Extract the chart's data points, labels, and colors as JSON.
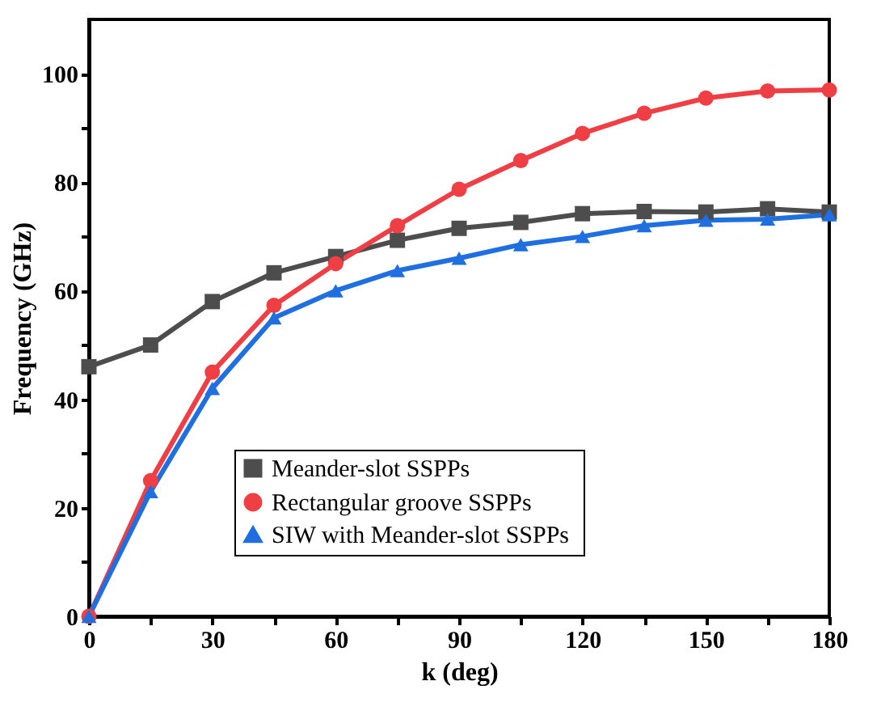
{
  "chart_data": {
    "type": "line",
    "xlabel": "k (deg)",
    "ylabel": "Frequency (GHz)",
    "x": [
      0,
      15,
      30,
      45,
      60,
      75,
      90,
      105,
      120,
      135,
      150,
      165,
      180
    ],
    "series": [
      {
        "name": "Meander-slot SSPPs",
        "color": "#4d4d4d",
        "marker": "square",
        "values": [
          46,
          50,
          58,
          63.3,
          66.3,
          69.3,
          71.5,
          72.6,
          74.2,
          74.6,
          74.5,
          75.1,
          74.5
        ]
      },
      {
        "name": "Rectangular groove SSPPs",
        "color": "#ef3f44",
        "marker": "circle",
        "values": [
          0,
          25,
          45,
          57.3,
          65,
          72,
          78.7,
          84,
          89,
          92.7,
          95.5,
          96.8,
          97
        ]
      },
      {
        "name": "SIW  with Meander-slot SSPPs",
        "color": "#1f6fe0",
        "marker": "triangle",
        "values": [
          0,
          23,
          42,
          55,
          60,
          63.7,
          66,
          68.5,
          70,
          72,
          73,
          73.2,
          74
        ]
      }
    ],
    "xlim": [
      0,
      180
    ],
    "ylim": [
      0,
      110
    ],
    "xticks": [
      0,
      {
        "value": 15,
        "label": null
      },
      30,
      {
        "value": 45,
        "label": null
      },
      60,
      {
        "value": 75,
        "label": null
      },
      90,
      {
        "value": 105,
        "label": null
      },
      120,
      {
        "value": 135,
        "label": null
      },
      150,
      {
        "value": 165,
        "label": null
      },
      180
    ],
    "yticks": [
      0,
      {
        "value": 10,
        "label": null
      },
      20,
      {
        "value": 30,
        "label": null
      },
      40,
      {
        "value": 50,
        "label": null
      },
      60,
      {
        "value": 70,
        "label": null
      },
      80,
      {
        "value": 90,
        "label": null
      },
      100
    ],
    "grid": false,
    "legend": "bottom",
    "line_style": "solid"
  }
}
